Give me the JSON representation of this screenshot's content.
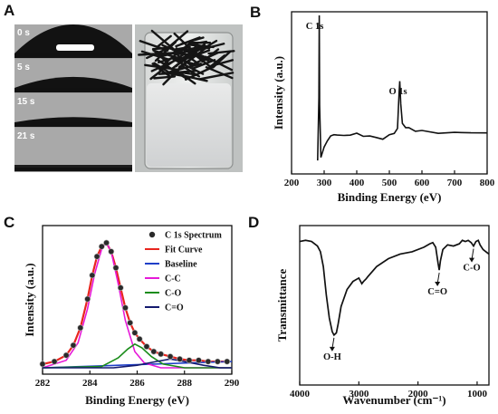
{
  "panels": {
    "A": {
      "label": "A",
      "contact_angle_times": [
        "0 s",
        "5 s",
        "15 s",
        "21 s"
      ],
      "contact_angle_heights": [
        1.0,
        0.38,
        0.18,
        0.0
      ]
    },
    "B": {
      "label": "B"
    },
    "C": {
      "label": "C"
    },
    "D": {
      "label": "D"
    }
  },
  "chart_data": [
    {
      "type": "line",
      "panel": "B",
      "xlabel": "Binding Energy (eV)",
      "ylabel": "Intensity (a.u.)",
      "xlim": [
        200,
        800
      ],
      "xticks": [
        200,
        300,
        400,
        500,
        600,
        700,
        800
      ],
      "grid": false,
      "annotations": [
        {
          "text": "C 1s",
          "x": 284.8
        },
        {
          "text": "O 1s",
          "x": 532
        }
      ],
      "series": [
        {
          "x": [
            280,
            284,
            285,
            286,
            290,
            300,
            310,
            320,
            330,
            340,
            360,
            380,
            400,
            420,
            440,
            460,
            480,
            500,
            515,
            525,
            530,
            532,
            535,
            540,
            550,
            560,
            580,
            600,
            650,
            700,
            750,
            800
          ],
          "y": [
            0.03,
            0.45,
            1.0,
            0.4,
            0.05,
            0.12,
            0.17,
            0.2,
            0.19,
            0.2,
            0.19,
            0.21,
            0.2,
            0.2,
            0.19,
            0.18,
            0.18,
            0.19,
            0.2,
            0.24,
            0.48,
            0.56,
            0.42,
            0.27,
            0.26,
            0.25,
            0.23,
            0.22,
            0.22,
            0.21,
            0.22,
            0.21
          ]
        }
      ]
    },
    {
      "type": "line",
      "panel": "C",
      "xlabel": "Binding Energy (eV)",
      "ylabel": "Intensity (a.u.)",
      "xlim": [
        282,
        290
      ],
      "xticks": [
        282,
        284,
        286,
        288,
        290
      ],
      "grid": false,
      "legend_position": "top-right",
      "series": [
        {
          "name": "C 1s Spectrum",
          "color": "#222222",
          "style": "markers",
          "x": [
            282.0,
            282.5,
            283.0,
            283.3,
            283.6,
            283.9,
            284.1,
            284.3,
            284.5,
            284.7,
            284.9,
            285.1,
            285.3,
            285.5,
            285.7,
            285.9,
            286.1,
            286.4,
            286.7,
            287.0,
            287.4,
            287.8,
            288.2,
            288.6,
            289.0,
            289.4,
            289.8
          ],
          "y": [
            0.03,
            0.05,
            0.1,
            0.18,
            0.32,
            0.55,
            0.74,
            0.89,
            0.97,
            1.0,
            0.93,
            0.8,
            0.64,
            0.48,
            0.36,
            0.28,
            0.23,
            0.17,
            0.13,
            0.11,
            0.09,
            0.07,
            0.06,
            0.06,
            0.05,
            0.05,
            0.05
          ]
        },
        {
          "name": "Fit Curve",
          "color": "#e8251e",
          "style": "line",
          "x": [
            282.0,
            282.5,
            283.0,
            283.3,
            283.6,
            283.9,
            284.1,
            284.3,
            284.5,
            284.7,
            284.9,
            285.1,
            285.3,
            285.5,
            285.7,
            285.9,
            286.1,
            286.4,
            286.7,
            287.0,
            287.4,
            287.8,
            288.2,
            288.6,
            289.0,
            289.4,
            289.8
          ],
          "y": [
            0.03,
            0.05,
            0.1,
            0.18,
            0.32,
            0.55,
            0.74,
            0.89,
            0.97,
            1.0,
            0.93,
            0.8,
            0.64,
            0.48,
            0.36,
            0.28,
            0.23,
            0.17,
            0.13,
            0.11,
            0.09,
            0.07,
            0.06,
            0.06,
            0.05,
            0.05,
            0.05
          ]
        },
        {
          "name": "Baseline",
          "color": "#1f3fc8",
          "style": "line",
          "x": [
            282,
            290
          ],
          "y": [
            0.0,
            0.05
          ]
        },
        {
          "name": "C-C",
          "color": "#e619d8",
          "style": "line",
          "x": [
            282.0,
            283.0,
            283.5,
            283.9,
            284.2,
            284.5,
            284.7,
            284.9,
            285.2,
            285.5,
            285.9,
            286.3,
            287.0,
            290.0
          ],
          "y": [
            0.0,
            0.06,
            0.2,
            0.47,
            0.75,
            0.95,
            1.0,
            0.93,
            0.67,
            0.38,
            0.13,
            0.04,
            0.0,
            0.0
          ]
        },
        {
          "name": "C-O",
          "color": "#1a8c1a",
          "style": "line",
          "x": [
            282.0,
            284.5,
            285.2,
            285.6,
            285.9,
            286.2,
            286.6,
            287.1,
            288.0,
            290.0
          ],
          "y": [
            0.0,
            0.01,
            0.08,
            0.15,
            0.19,
            0.16,
            0.09,
            0.03,
            0.0,
            0.0
          ]
        },
        {
          "name": "C=O",
          "color": "#141a6e",
          "style": "line",
          "x": [
            282.0,
            285.0,
            286.0,
            286.8,
            287.4,
            288.0,
            288.8,
            289.5,
            290.0
          ],
          "y": [
            0.0,
            0.0,
            0.02,
            0.05,
            0.07,
            0.05,
            0.02,
            0.0,
            0.0
          ]
        }
      ]
    },
    {
      "type": "line",
      "panel": "D",
      "xlabel": "Wavenumber (cm⁻¹)",
      "ylabel": "Transmittance",
      "xlim": [
        4000,
        800
      ],
      "xticks": [
        4000,
        3000,
        2000,
        1000
      ],
      "grid": false,
      "annotations": [
        {
          "text": "O-H",
          "x": 3420
        },
        {
          "text": "C=O",
          "x": 1640
        },
        {
          "text": "C-O",
          "x": 1060
        }
      ],
      "series": [
        {
          "x": [
            4000,
            3900,
            3800,
            3700,
            3650,
            3600,
            3550,
            3500,
            3450,
            3420,
            3380,
            3350,
            3300,
            3200,
            3100,
            3000,
            2950,
            2920,
            2880,
            2850,
            2700,
            2500,
            2300,
            2100,
            1900,
            1800,
            1750,
            1700,
            1660,
            1640,
            1620,
            1580,
            1500,
            1400,
            1300,
            1250,
            1200,
            1150,
            1100,
            1060,
            1020,
            980,
            950,
            900,
            850,
            800
          ],
          "y": [
            0.97,
            0.98,
            0.97,
            0.93,
            0.88,
            0.75,
            0.5,
            0.3,
            0.18,
            0.15,
            0.17,
            0.25,
            0.4,
            0.55,
            0.62,
            0.65,
            0.6,
            0.62,
            0.64,
            0.66,
            0.75,
            0.82,
            0.86,
            0.88,
            0.92,
            0.95,
            0.96,
            0.92,
            0.78,
            0.72,
            0.8,
            0.9,
            0.94,
            0.93,
            0.95,
            0.98,
            0.97,
            0.98,
            0.96,
            0.93,
            0.97,
            0.98,
            0.94,
            0.9,
            0.88,
            0.86
          ]
        }
      ]
    }
  ]
}
